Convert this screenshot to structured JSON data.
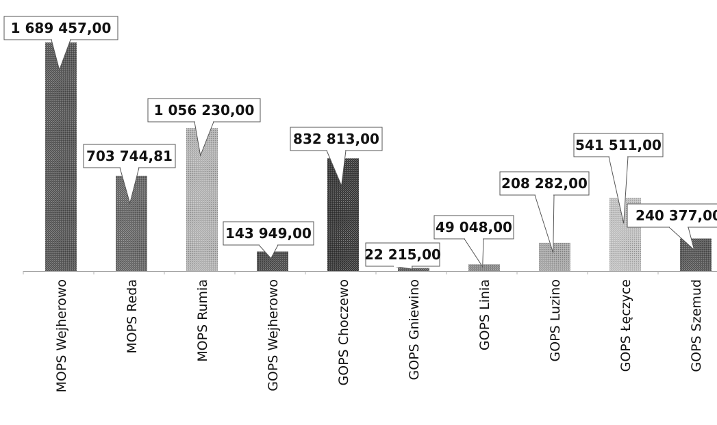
{
  "chart_data": {
    "type": "bar",
    "title": "",
    "xlabel": "",
    "ylabel": "",
    "ylim": [
      0,
      1700000
    ],
    "grid": false,
    "legend": "none",
    "categories": [
      "MOPS Wejherowo",
      "MOPS Reda",
      "MOPS Rumia",
      "GOPS Wejherowo",
      "GOPS Choczewo",
      "GOPS Gniewino",
      "GOPS Linia",
      "GOPS Luzino",
      "GOPS Łęczyce",
      "GOPS Szemud"
    ],
    "values": [
      1689457.0,
      703744.81,
      1056230.0,
      143949.0,
      832813.0,
      22215.0,
      49048.0,
      208282.0,
      541511.0,
      240377.0
    ],
    "data_labels": [
      "1 689 457,00",
      "703 744,81",
      "1 056 230,00",
      "143 949,00",
      "832 813,00",
      "22 215,00",
      "49 048,00",
      "208 282,00",
      "541 511,00",
      "240 377,00"
    ],
    "colors": [
      "#5a5a5a",
      "#6a6a6a",
      "#b4b4b4",
      "#4f4f4f",
      "#3c3c3c",
      "#5f5f5f",
      "#8a8a8a",
      "#a8a8a8",
      "#c2c2c2",
      "#5a5a5a"
    ]
  }
}
